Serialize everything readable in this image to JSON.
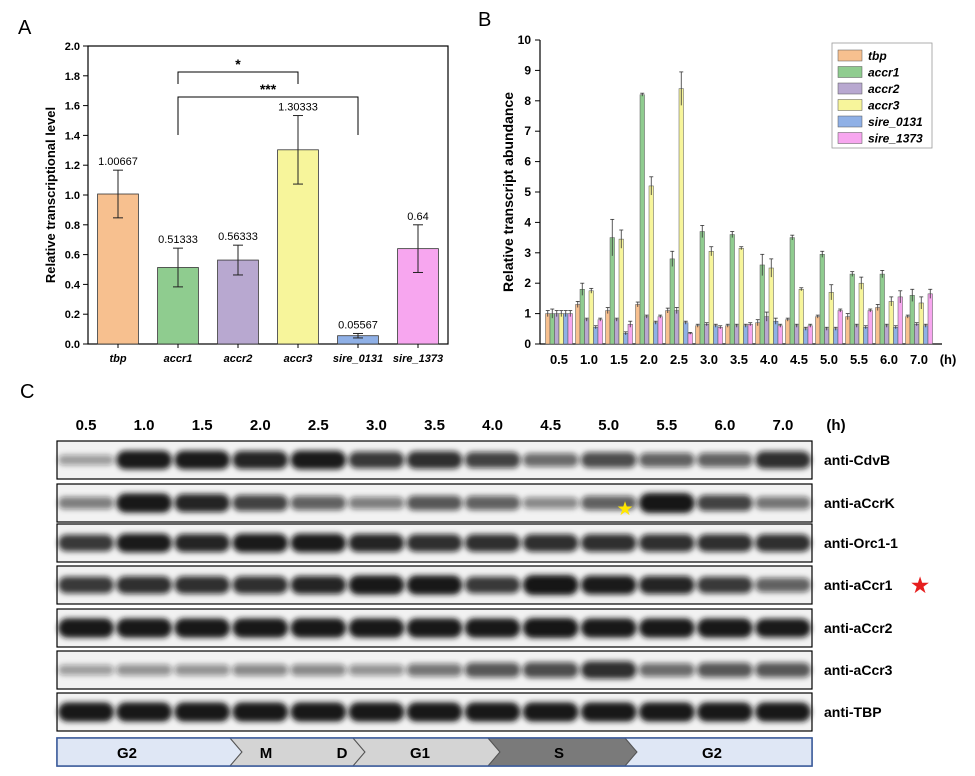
{
  "panels": {
    "a": "A",
    "b": "B",
    "c": "C"
  },
  "colors": {
    "tbp": "#f7c08f",
    "accr1": "#8fcc8f",
    "accr2": "#b8a8d0",
    "accr3": "#f7f59b",
    "sire_0131": "#8fb0e6",
    "sire_1373": "#f7a6ef",
    "gel_bg": "#f2f2f2",
    "band": "#121212",
    "phase_light": "#dfe7f5",
    "phase_mid": "#d4d4d4",
    "phase_dark": "#7a7a7a",
    "phase_border": "#3a5a9a",
    "star_yellow": "#ffe600",
    "star_red": "#e61e1e"
  },
  "chart_data": [
    {
      "id": "A",
      "type": "bar",
      "categories": [
        "tbp",
        "accr1",
        "accr2",
        "accr3",
        "sire_0131",
        "sire_1373"
      ],
      "values": [
        1.00667,
        0.51333,
        0.56333,
        1.30333,
        0.05567,
        0.64
      ],
      "value_labels": [
        "1.00667",
        "0.51333",
        "0.56333",
        "1.30333",
        "0.05567",
        "0.64"
      ],
      "errors": [
        0.16,
        0.13,
        0.1,
        0.23,
        0.015,
        0.16
      ],
      "ylabel": "Relative transcriptional level",
      "ylim": [
        0,
        2.0
      ],
      "yticks": [
        "0.0",
        "0.2",
        "0.4",
        "0.6",
        "0.8",
        "1.0",
        "1.2",
        "1.4",
        "1.6",
        "1.8",
        "2.0"
      ],
      "significance": [
        {
          "from": "accr1",
          "to": "accr3",
          "label": "*",
          "y": 1.95
        },
        {
          "from": "accr1",
          "to": "sire_0131",
          "label": "***",
          "y": 1.74
        }
      ]
    },
    {
      "id": "B",
      "type": "bar",
      "categories": [
        "0.5",
        "1.0",
        "1.5",
        "2.0",
        "2.5",
        "3.0",
        "3.5",
        "4.0",
        "4.5",
        "5.0",
        "5.5",
        "6.0",
        "7.0"
      ],
      "xunit": "(h)",
      "ylabel": "Relative transcript abundance",
      "ylim": [
        0,
        10
      ],
      "yticks": [
        "0",
        "1",
        "2",
        "3",
        "4",
        "5",
        "6",
        "7",
        "8",
        "9",
        "10"
      ],
      "legend_position": "top-right",
      "series": [
        {
          "name": "tbp",
          "values": [
            1.0,
            1.3,
            1.1,
            1.3,
            1.1,
            0.6,
            0.6,
            0.7,
            0.8,
            0.9,
            0.9,
            1.2,
            0.9
          ],
          "errors": [
            0.1,
            0.1,
            0.1,
            0.08,
            0.08,
            0.05,
            0.05,
            0.1,
            0.05,
            0.05,
            0.1,
            0.1,
            0.05
          ]
        },
        {
          "name": "accr1",
          "values": [
            1.0,
            1.8,
            3.5,
            8.2,
            2.8,
            3.7,
            3.6,
            2.6,
            3.5,
            2.95,
            2.3,
            2.3,
            1.6
          ],
          "errors": [
            0.15,
            0.2,
            0.6,
            0.05,
            0.25,
            0.2,
            0.1,
            0.35,
            0.08,
            0.1,
            0.08,
            0.12,
            0.2
          ]
        },
        {
          "name": "accr2",
          "values": [
            1.0,
            0.8,
            0.8,
            0.9,
            1.1,
            0.65,
            0.6,
            0.9,
            0.6,
            0.5,
            0.6,
            0.6,
            0.65
          ],
          "errors": [
            0.1,
            0.05,
            0.05,
            0.05,
            0.1,
            0.05,
            0.05,
            0.15,
            0.05,
            0.05,
            0.05,
            0.05,
            0.05
          ]
        },
        {
          "name": "accr3",
          "values": [
            1.0,
            1.75,
            3.45,
            5.2,
            8.4,
            3.05,
            3.15,
            2.5,
            1.8,
            1.7,
            2.0,
            1.4,
            1.35
          ],
          "errors": [
            0.1,
            0.08,
            0.3,
            0.3,
            0.55,
            0.15,
            0.05,
            0.3,
            0.05,
            0.25,
            0.2,
            0.15,
            0.2
          ]
        },
        {
          "name": "sire_0131",
          "values": [
            1.0,
            0.55,
            0.35,
            0.7,
            0.7,
            0.6,
            0.6,
            0.75,
            0.5,
            0.5,
            0.55,
            0.55,
            0.6
          ],
          "errors": [
            0.1,
            0.05,
            0.05,
            0.05,
            0.05,
            0.05,
            0.05,
            0.1,
            0.05,
            0.05,
            0.05,
            0.05,
            0.05
          ]
        },
        {
          "name": "sire_1373",
          "values": [
            1.0,
            0.8,
            0.65,
            0.9,
            0.35,
            0.55,
            0.65,
            0.6,
            0.6,
            1.1,
            1.1,
            1.55,
            1.65
          ],
          "errors": [
            0.1,
            0.05,
            0.1,
            0.05,
            0.03,
            0.05,
            0.05,
            0.05,
            0.05,
            0.05,
            0.05,
            0.2,
            0.15
          ]
        }
      ]
    }
  ],
  "blot": {
    "timepoints": [
      "0.5",
      "1.0",
      "1.5",
      "2.0",
      "2.5",
      "3.0",
      "3.5",
      "4.0",
      "4.5",
      "5.0",
      "5.5",
      "6.0",
      "7.0"
    ],
    "unit": "(h)",
    "rows": [
      {
        "label": "anti-CdvB",
        "intensity": [
          0.25,
          0.9,
          0.9,
          0.85,
          0.9,
          0.75,
          0.8,
          0.7,
          0.5,
          0.65,
          0.55,
          0.55,
          0.8
        ]
      },
      {
        "label": "anti-aCcrK",
        "intensity": [
          0.4,
          0.95,
          0.85,
          0.7,
          0.55,
          0.4,
          0.6,
          0.55,
          0.35,
          0.55,
          1.0,
          0.7,
          0.45
        ]
      },
      {
        "label": "anti-Orc1-1",
        "intensity": [
          0.75,
          0.9,
          0.85,
          0.9,
          0.9,
          0.85,
          0.8,
          0.8,
          0.8,
          0.8,
          0.8,
          0.8,
          0.8
        ]
      },
      {
        "label": "anti-aCcr1",
        "intensity": [
          0.75,
          0.8,
          0.8,
          0.8,
          0.85,
          0.95,
          0.95,
          0.75,
          1.0,
          0.9,
          0.85,
          0.75,
          0.55
        ]
      },
      {
        "label": "anti-aCcr2",
        "intensity": [
          0.95,
          0.95,
          0.95,
          0.95,
          0.95,
          0.95,
          0.95,
          0.95,
          1.0,
          0.95,
          0.95,
          0.95,
          0.9
        ]
      },
      {
        "label": "anti-aCcr3",
        "intensity": [
          0.25,
          0.3,
          0.3,
          0.35,
          0.35,
          0.3,
          0.45,
          0.6,
          0.65,
          0.8,
          0.5,
          0.6,
          0.6
        ]
      },
      {
        "label": "anti-TBP",
        "intensity": [
          0.95,
          0.95,
          0.95,
          0.95,
          0.95,
          0.95,
          0.95,
          0.95,
          0.95,
          0.95,
          0.95,
          0.95,
          0.95
        ]
      }
    ],
    "markers": [
      {
        "row": "anti-aCcrK",
        "symbol": "★",
        "color_key": "star_yellow"
      },
      {
        "row": "anti-aCcr1",
        "symbol": "★",
        "color_key": "star_red"
      }
    ],
    "phases": [
      {
        "label": "G2",
        "tone": "light"
      },
      {
        "label": "M",
        "tone": "mid"
      },
      {
        "label": "D",
        "tone": "mid"
      },
      {
        "label": "G1",
        "tone": "mid"
      },
      {
        "label": "S",
        "tone": "dark"
      },
      {
        "label": "G2",
        "tone": "light"
      }
    ]
  }
}
